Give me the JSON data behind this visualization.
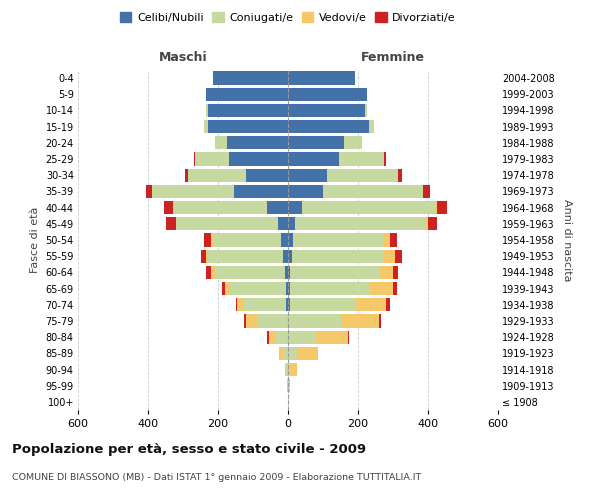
{
  "age_groups": [
    "100+",
    "95-99",
    "90-94",
    "85-89",
    "80-84",
    "75-79",
    "70-74",
    "65-69",
    "60-64",
    "55-59",
    "50-54",
    "45-49",
    "40-44",
    "35-39",
    "30-34",
    "25-29",
    "20-24",
    "15-19",
    "10-14",
    "5-9",
    "0-4"
  ],
  "birth_years": [
    "≤ 1908",
    "1909-1913",
    "1914-1918",
    "1919-1923",
    "1924-1928",
    "1929-1933",
    "1934-1938",
    "1939-1943",
    "1944-1948",
    "1949-1953",
    "1954-1958",
    "1959-1963",
    "1964-1968",
    "1969-1973",
    "1974-1978",
    "1979-1983",
    "1984-1988",
    "1989-1993",
    "1994-1998",
    "1999-2003",
    "2004-2008"
  ],
  "male": {
    "celibi": [
      0,
      0,
      0,
      0,
      0,
      0,
      5,
      5,
      10,
      15,
      20,
      30,
      60,
      155,
      120,
      170,
      175,
      230,
      230,
      235,
      215
    ],
    "coniugati": [
      1,
      2,
      5,
      15,
      35,
      90,
      120,
      160,
      200,
      215,
      195,
      290,
      270,
      235,
      165,
      95,
      35,
      10,
      5,
      0,
      0
    ],
    "vedovi": [
      0,
      0,
      5,
      10,
      20,
      30,
      20,
      15,
      10,
      5,
      5,
      0,
      0,
      0,
      0,
      0,
      0,
      0,
      0,
      0,
      0
    ],
    "divorziati": [
      0,
      0,
      0,
      0,
      5,
      5,
      5,
      10,
      15,
      15,
      20,
      30,
      25,
      15,
      10,
      5,
      0,
      0,
      0,
      0,
      0
    ]
  },
  "female": {
    "nubili": [
      0,
      0,
      0,
      0,
      0,
      0,
      5,
      5,
      5,
      10,
      15,
      20,
      40,
      100,
      110,
      145,
      160,
      230,
      220,
      225,
      190
    ],
    "coniugate": [
      1,
      2,
      5,
      25,
      80,
      150,
      190,
      230,
      255,
      265,
      255,
      370,
      380,
      285,
      205,
      130,
      50,
      15,
      5,
      0,
      0
    ],
    "vedove": [
      0,
      5,
      20,
      60,
      90,
      110,
      85,
      65,
      40,
      30,
      20,
      10,
      5,
      0,
      0,
      0,
      0,
      0,
      0,
      0,
      0
    ],
    "divorziate": [
      0,
      0,
      0,
      0,
      5,
      5,
      10,
      10,
      15,
      20,
      20,
      25,
      30,
      20,
      10,
      5,
      0,
      0,
      0,
      0,
      0
    ]
  },
  "colors": {
    "celibi": "#4472a8",
    "coniugati": "#c5d9a0",
    "vedovi": "#f5c96a",
    "divorziati": "#cc2222"
  },
  "xlim": 600,
  "title": "Popolazione per età, sesso e stato civile - 2009",
  "subtitle": "COMUNE DI BIASSONO (MB) - Dati ISTAT 1° gennaio 2009 - Elaborazione TUTTITALIA.IT",
  "ylabel": "Fasce di età",
  "ylabel_right": "Anni di nascita",
  "xlabel_left": "Maschi",
  "xlabel_right": "Femmine",
  "legend_labels": [
    "Celibi/Nubili",
    "Coniugati/e",
    "Vedovi/e",
    "Divorziati/e"
  ],
  "bg_color": "#ffffff",
  "grid_color": "#cccccc"
}
